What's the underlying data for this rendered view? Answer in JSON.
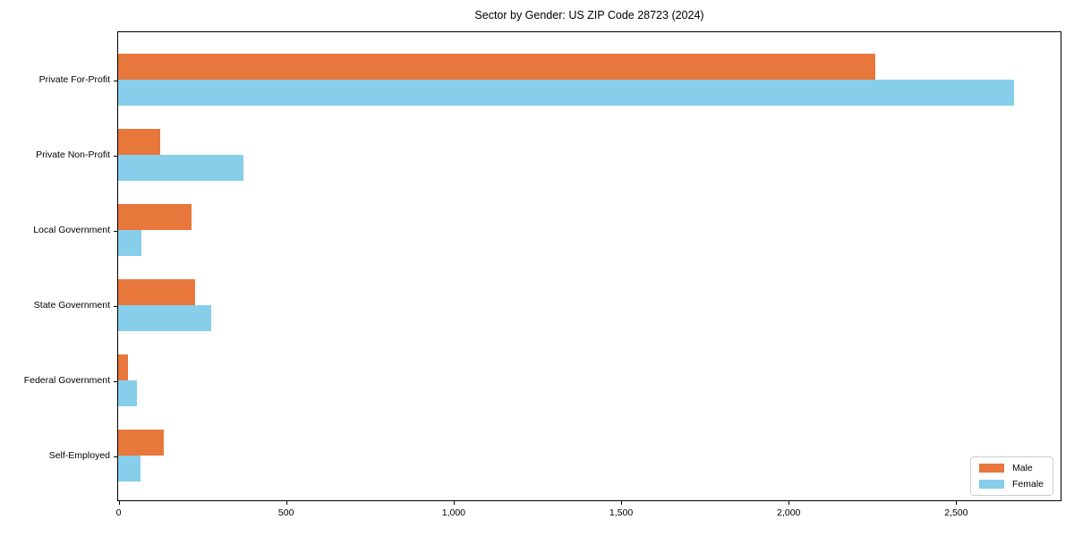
{
  "title": "Sector by Gender: US ZIP Code 28723 (2024)",
  "colors": {
    "male": "#E8773B",
    "female": "#87CEEB",
    "axis": "#000000",
    "legend_border": "#cccccc",
    "background": "#ffffff"
  },
  "legend": {
    "items": [
      {
        "label": "Male",
        "color": "#E8773B"
      },
      {
        "label": "Female",
        "color": "#87CEEB"
      }
    ],
    "position": "lower right"
  },
  "chart_data": {
    "type": "bar",
    "orientation": "horizontal",
    "title": "Sector by Gender: US ZIP Code 28723 (2024)",
    "categories": [
      "Private For-Profit",
      "Private Non-Profit",
      "Local Government",
      "State Government",
      "Federal Government",
      "Self-Employed"
    ],
    "series": [
      {
        "name": "Male",
        "color": "#E8773B",
        "values": [
          2260,
          125,
          220,
          230,
          30,
          135
        ]
      },
      {
        "name": "Female",
        "color": "#87CEEB",
        "values": [
          2675,
          375,
          70,
          278,
          55,
          68
        ]
      }
    ],
    "xlabel": "",
    "ylabel": "",
    "xlim": [
      0,
      2810
    ],
    "x_ticks": [
      0,
      500,
      1000,
      1500,
      2000,
      2500
    ],
    "x_tick_labels": [
      "0",
      "500",
      "1,000",
      "1,500",
      "2,000",
      "2,500"
    ],
    "grid": false,
    "legend_position": "lower right"
  }
}
